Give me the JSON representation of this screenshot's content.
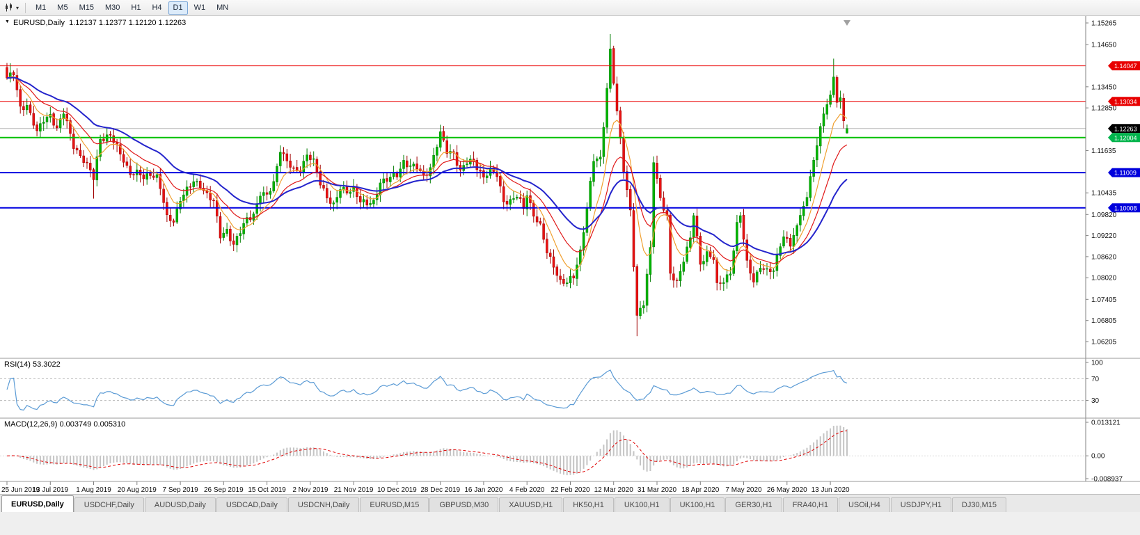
{
  "toolbar": {
    "timeframes": [
      "M1",
      "M5",
      "M15",
      "M30",
      "H1",
      "H4",
      "D1",
      "W1",
      "MN"
    ],
    "active_timeframe": "D1"
  },
  "tabs": {
    "items": [
      "EURUSD,Daily",
      "USDCHF,Daily",
      "AUDUSD,Daily",
      "USDCAD,Daily",
      "USDCNH,Daily",
      "EURUSD,M15",
      "GBPUSD,M30",
      "XAUUSD,H1",
      "HK50,H1",
      "UK100,H1",
      "UK100,H1",
      "GER30,H1",
      "FRA40,H1",
      "USOil,H4",
      "USDJPY,H1",
      "DJ30,M15"
    ],
    "active_index": 0
  },
  "chart_data": {
    "type": "candlestick",
    "symbol": "EURUSD",
    "timeframe": "Daily",
    "header_line": "EURUSD,Daily  1.12137 1.12377 1.12120 1.12263",
    "ohlc": {
      "open": 1.12137,
      "high": 1.12377,
      "low": 1.1212,
      "close": 1.12263
    },
    "current_price": 1.12263,
    "current_price_line_color": "#b8b8b8",
    "y_axis": {
      "min": 1.06205,
      "max": 1.15265,
      "ticks": [
        "1.15265",
        "1.14650",
        "1.13450",
        "1.12850",
        "1.11635",
        "1.10435",
        "1.09820",
        "1.09220",
        "1.08620",
        "1.08020",
        "1.07405",
        "1.06805",
        "1.06205"
      ]
    },
    "price_badges": [
      {
        "value": "1.14047",
        "price": 1.14047,
        "color": "#e80000"
      },
      {
        "value": "1.13034",
        "price": 1.13034,
        "color": "#e80000"
      },
      {
        "value": "1.12263",
        "price": 1.12263,
        "color": "#000000"
      },
      {
        "value": "1.12004",
        "price": 1.12004,
        "color": "#00b44c"
      },
      {
        "value": "1.11009",
        "price": 1.11009,
        "color": "#0000dc"
      },
      {
        "value": "1.10008",
        "price": 1.10008,
        "color": "#0000dc"
      }
    ],
    "horizontal_lines": [
      {
        "price": 1.14047,
        "color": "#ec0000",
        "width": 1
      },
      {
        "price": 1.13034,
        "color": "#ec0000",
        "width": 1
      },
      {
        "price": 1.12004,
        "color": "#00c000",
        "width": 2
      },
      {
        "price": 1.11009,
        "color": "#0000e0",
        "width": 2
      },
      {
        "price": 1.10008,
        "color": "#0000e0",
        "width": 2
      }
    ],
    "x_labels": [
      "25 Jun 2019",
      "13 Jul 2019",
      "1 Aug 2019",
      "20 Aug 2019",
      "7 Sep 2019",
      "26 Sep 2019",
      "15 Oct 2019",
      "2 Nov 2019",
      "21 Nov 2019",
      "10 Dec 2019",
      "28 Dec 2019",
      "16 Jan 2020",
      "4 Feb 2020",
      "22 Feb 2020",
      "12 Mar 2020",
      "31 Mar 2020",
      "18 Apr 2020",
      "7 May 2020",
      "26 May 2020",
      "13 Jun 2020"
    ],
    "candles": {
      "count": 253,
      "label_step": 13,
      "colors": {
        "bull": "#00b400",
        "bear": "#e81212",
        "bull_border": "#007c00",
        "bear_border": "#a00000"
      },
      "anchors": [
        [
          0,
          1.137
        ],
        [
          2,
          1.138
        ],
        [
          4,
          1.1285
        ],
        [
          6,
          1.1296
        ],
        [
          9,
          1.1213
        ],
        [
          11,
          1.125
        ],
        [
          13,
          1.1268
        ],
        [
          15,
          1.1225
        ],
        [
          17,
          1.127
        ],
        [
          20,
          1.118
        ],
        [
          22,
          1.115
        ],
        [
          24,
          1.112
        ],
        [
          26,
          1.1085
        ],
        [
          28,
          1.12
        ],
        [
          31,
          1.1205
        ],
        [
          33,
          1.117
        ],
        [
          35,
          1.1139
        ],
        [
          37,
          1.11
        ],
        [
          39,
          1.1098
        ],
        [
          41,
          1.1085
        ],
        [
          43,
          1.11
        ],
        [
          45,
          1.109
        ],
        [
          46,
          1.1057
        ],
        [
          48,
          1.097
        ],
        [
          50,
          1.0965
        ],
        [
          52,
          1.1028
        ],
        [
          54,
          1.105
        ],
        [
          56,
          1.1073
        ],
        [
          58,
          1.1068
        ],
        [
          60,
          1.104
        ],
        [
          62,
          1.1015
        ],
        [
          64,
          1.092
        ],
        [
          66,
          1.094
        ],
        [
          68,
          1.0895
        ],
        [
          70,
          1.093
        ],
        [
          72,
          1.097
        ],
        [
          74,
          1.0985
        ],
        [
          76,
          1.104
        ],
        [
          78,
          1.1032
        ],
        [
          80,
          1.1073
        ],
        [
          82,
          1.117
        ],
        [
          84,
          1.113
        ],
        [
          86,
          1.1105
        ],
        [
          88,
          1.111
        ],
        [
          90,
          1.1155
        ],
        [
          92,
          1.113
        ],
        [
          94,
          1.1068
        ],
        [
          96,
          1.1035
        ],
        [
          98,
          1.101
        ],
        [
          100,
          1.1052
        ],
        [
          102,
          1.1045
        ],
        [
          104,
          1.106
        ],
        [
          106,
          1.102
        ],
        [
          108,
          1.1008
        ],
        [
          110,
          1.1017
        ],
        [
          112,
          1.1078
        ],
        [
          114,
          1.108
        ],
        [
          117,
          1.1093
        ],
        [
          119,
          1.1135
        ],
        [
          121,
          1.112
        ],
        [
          123,
          1.1113
        ],
        [
          125,
          1.1089
        ],
        [
          127,
          1.1118
        ],
        [
          130,
          1.121
        ],
        [
          132,
          1.116
        ],
        [
          134,
          1.116
        ],
        [
          136,
          1.1105
        ],
        [
          138,
          1.1128
        ],
        [
          140,
          1.1134
        ],
        [
          143,
          1.109
        ],
        [
          145,
          1.1105
        ],
        [
          147,
          1.1093
        ],
        [
          149,
          1.1023
        ],
        [
          151,
          1.102
        ],
        [
          153,
          1.1032
        ],
        [
          155,
          1.1
        ],
        [
          156,
          1.1043
        ],
        [
          158,
          1.0983
        ],
        [
          160,
          1.0946
        ],
        [
          162,
          1.0873
        ],
        [
          164,
          1.084
        ],
        [
          166,
          1.0792
        ],
        [
          168,
          1.0785
        ],
        [
          170,
          1.0805
        ],
        [
          172,
          1.088
        ],
        [
          174,
          1.1
        ],
        [
          176,
          1.1134
        ],
        [
          178,
          1.114
        ],
        [
          179,
          1.124
        ],
        [
          181,
          1.145
        ],
        [
          183,
          1.127
        ],
        [
          185,
          1.1109
        ],
        [
          187,
          1.0995
        ],
        [
          189,
          1.0693
        ],
        [
          191,
          1.0725
        ],
        [
          193,
          1.0885
        ],
        [
          194,
          1.114
        ],
        [
          196,
          1.103
        ],
        [
          198,
          1.097
        ],
        [
          199,
          1.0808
        ],
        [
          201,
          1.079
        ],
        [
          203,
          1.0858
        ],
        [
          205,
          1.0913
        ],
        [
          206,
          1.098
        ],
        [
          208,
          1.084
        ],
        [
          210,
          1.0875
        ],
        [
          212,
          1.0858
        ],
        [
          213,
          1.0777
        ],
        [
          215,
          1.079
        ],
        [
          217,
          1.082
        ],
        [
          219,
          1.0955
        ],
        [
          220,
          1.098
        ],
        [
          222,
          1.084
        ],
        [
          224,
          1.0795
        ],
        [
          226,
          1.0838
        ],
        [
          228,
          1.0818
        ],
        [
          230,
          1.082
        ],
        [
          232,
          1.09
        ],
        [
          233,
          1.0924
        ],
        [
          235,
          1.0896
        ],
        [
          237,
          1.094
        ],
        [
          238,
          1.0984
        ],
        [
          240,
          1.103
        ],
        [
          241,
          1.1101
        ],
        [
          243,
          1.117
        ],
        [
          244,
          1.1234
        ],
        [
          246,
          1.129
        ],
        [
          248,
          1.1375
        ],
        [
          249,
          1.13
        ],
        [
          250,
          1.132
        ],
        [
          251,
          1.124
        ],
        [
          252,
          1.12263
        ]
      ],
      "spikes": [
        {
          "i": 1,
          "high": 1.1412
        },
        {
          "i": 26,
          "low": 1.1027
        },
        {
          "i": 68,
          "low": 1.0879
        },
        {
          "i": 168,
          "low": 1.0778
        },
        {
          "i": 181,
          "high": 1.1495
        },
        {
          "i": 189,
          "low": 1.0636
        },
        {
          "i": 194,
          "high": 1.1147
        },
        {
          "i": 213,
          "low": 1.0766
        },
        {
          "i": 248,
          "high": 1.1425
        }
      ]
    },
    "moving_averages": [
      {
        "period": 8,
        "method": "ema",
        "color": "#f0a030",
        "width": 1.2
      },
      {
        "period": 17,
        "method": "ema",
        "color": "#e01818",
        "width": 1.2
      },
      {
        "period": 34,
        "method": "ema",
        "color": "#2424cc",
        "width": 2
      }
    ],
    "rsi": {
      "label": "RSI(14) 53.3022",
      "period": 14,
      "value": 53.3022,
      "color": "#5b9bd5",
      "axis_labels": [
        "100",
        "70",
        "30"
      ],
      "levels": [
        70,
        30
      ],
      "range": [
        0,
        100
      ]
    },
    "macd": {
      "label": "MACD(12,26,9) 0.003749 0.005310",
      "fast": 12,
      "slow": 26,
      "signal": 9,
      "value": 0.003749,
      "signal_value": 0.00531,
      "axis_labels": [
        "0.013121",
        "0.00",
        "-0.008937"
      ],
      "range": [
        -0.008937,
        0.013121
      ],
      "histogram_color": "#c4c4c4",
      "signal_color": "#e00000"
    }
  }
}
